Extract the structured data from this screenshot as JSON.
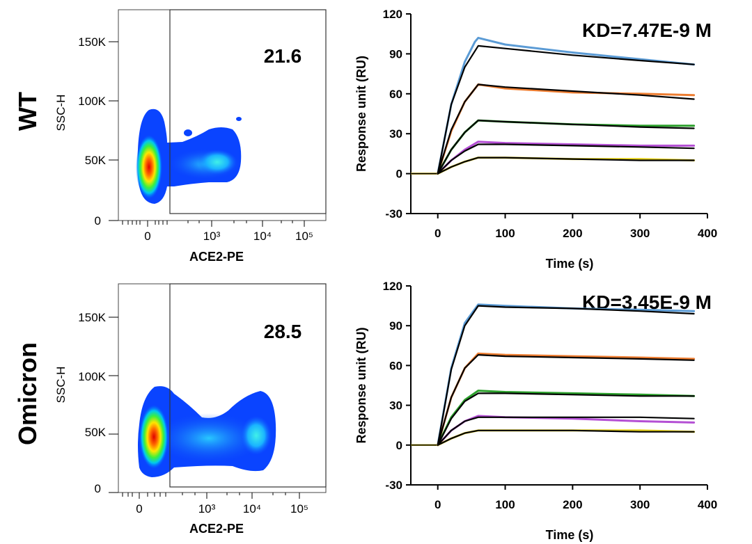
{
  "panels": [
    {
      "row_label": "WT",
      "flow": {
        "gate_value": "21.6",
        "xlabel": "ACE2-PE",
        "ylabel": "SSC-H",
        "yticks": [
          "0",
          "50K",
          "100K",
          "150K"
        ],
        "xticks": [
          "0",
          "10³",
          "10⁴",
          "10⁵"
        ]
      },
      "spr": {
        "kd": "KD=7.47E-9  M"
      }
    },
    {
      "row_label": "Omicron",
      "flow": {
        "gate_value": "28.5",
        "xlabel": "ACE2-PE",
        "ylabel": "SSC-H",
        "yticks": [
          "0",
          "50K",
          "100K",
          "150K"
        ],
        "xticks": [
          "0",
          "10³",
          "10⁴",
          "10⁵"
        ]
      },
      "spr": {
        "kd": "KD=3.45E-9  M"
      }
    }
  ],
  "chart_data": [
    {
      "type": "line",
      "chart": "WT SPR sensorgram",
      "annotation": "KD=7.47E-9  M",
      "xlabel": "Time (s)",
      "ylabel": "Response unit (RU)",
      "xlim": [
        -40,
        400
      ],
      "ylim": [
        -30,
        120
      ],
      "xticks": [
        0,
        100,
        200,
        300,
        400
      ],
      "yticks": [
        -30,
        0,
        30,
        60,
        90,
        120
      ],
      "series": [
        {
          "color": "#5b9bd5",
          "kind": "measured",
          "x": [
            0,
            20,
            40,
            55,
            60,
            100,
            200,
            300,
            380
          ],
          "y": [
            0,
            52,
            84,
            99,
            102,
            97,
            91,
            86,
            82
          ]
        },
        {
          "color": "#000000",
          "kind": "fit",
          "x": [
            0,
            20,
            40,
            60,
            100,
            200,
            300,
            380
          ],
          "y": [
            0,
            52,
            80,
            96,
            94,
            89,
            85,
            82
          ]
        },
        {
          "color": "#ed7d31",
          "kind": "measured",
          "x": [
            0,
            20,
            40,
            60,
            100,
            200,
            300,
            380
          ],
          "y": [
            0,
            32,
            54,
            67,
            64,
            61,
            60,
            59
          ]
        },
        {
          "color": "#000000",
          "kind": "fit",
          "x": [
            0,
            20,
            40,
            60,
            100,
            200,
            300,
            380
          ],
          "y": [
            0,
            33,
            54,
            67,
            65,
            62,
            59,
            56
          ]
        },
        {
          "color": "#2ca02c",
          "kind": "measured",
          "x": [
            0,
            20,
            40,
            60,
            100,
            200,
            300,
            380
          ],
          "y": [
            0,
            18,
            31,
            40,
            39,
            37,
            36,
            36
          ]
        },
        {
          "color": "#000000",
          "kind": "fit",
          "x": [
            0,
            20,
            40,
            60,
            100,
            200,
            300,
            380
          ],
          "y": [
            0,
            18,
            31,
            40,
            39,
            37,
            35,
            34
          ]
        },
        {
          "color": "#b44fd4",
          "kind": "measured",
          "x": [
            0,
            20,
            40,
            60,
            100,
            200,
            300,
            380
          ],
          "y": [
            0,
            10,
            18,
            24,
            23,
            22,
            21,
            21
          ]
        },
        {
          "color": "#000000",
          "kind": "fit",
          "x": [
            0,
            20,
            40,
            60,
            100,
            200,
            300,
            380
          ],
          "y": [
            0,
            10,
            17,
            22,
            22,
            21,
            20,
            19
          ]
        },
        {
          "color": "#e6d21e",
          "kind": "measured",
          "x": [
            0,
            20,
            40,
            60,
            100,
            200,
            300,
            380
          ],
          "y": [
            0,
            5,
            9,
            12,
            12,
            11,
            11,
            10
          ]
        },
        {
          "color": "#000000",
          "kind": "fit",
          "x": [
            0,
            20,
            40,
            60,
            100,
            200,
            300,
            380
          ],
          "y": [
            0,
            5,
            9,
            12,
            12,
            11,
            10,
            10
          ]
        }
      ]
    },
    {
      "type": "line",
      "chart": "Omicron SPR sensorgram",
      "annotation": "KD=3.45E-9  M",
      "xlabel": "Time (s)",
      "ylabel": "Response unit (RU)",
      "xlim": [
        -40,
        400
      ],
      "ylim": [
        -30,
        120
      ],
      "xticks": [
        0,
        100,
        200,
        300,
        400
      ],
      "yticks": [
        -30,
        0,
        30,
        60,
        90,
        120
      ],
      "series": [
        {
          "color": "#5b9bd5",
          "kind": "measured",
          "x": [
            0,
            20,
            40,
            60,
            100,
            200,
            300,
            380
          ],
          "y": [
            0,
            58,
            92,
            106,
            105,
            103,
            102,
            101
          ]
        },
        {
          "color": "#000000",
          "kind": "fit",
          "x": [
            0,
            20,
            40,
            60,
            100,
            200,
            300,
            380
          ],
          "y": [
            0,
            57,
            90,
            105,
            104,
            103,
            101,
            99
          ]
        },
        {
          "color": "#ed7d31",
          "kind": "measured",
          "x": [
            0,
            20,
            40,
            60,
            100,
            200,
            300,
            380
          ],
          "y": [
            0,
            36,
            58,
            69,
            68,
            67,
            66,
            65
          ]
        },
        {
          "color": "#000000",
          "kind": "fit",
          "x": [
            0,
            20,
            40,
            60,
            100,
            200,
            300,
            380
          ],
          "y": [
            0,
            36,
            58,
            68,
            67,
            66,
            65,
            64
          ]
        },
        {
          "color": "#2ca02c",
          "kind": "measured",
          "x": [
            0,
            20,
            40,
            60,
            100,
            200,
            300,
            380
          ],
          "y": [
            0,
            21,
            34,
            41,
            40,
            39,
            38,
            37
          ]
        },
        {
          "color": "#000000",
          "kind": "fit",
          "x": [
            0,
            20,
            40,
            60,
            100,
            200,
            300,
            380
          ],
          "y": [
            0,
            20,
            33,
            39,
            39,
            38,
            37,
            37
          ]
        },
        {
          "color": "#b44fd4",
          "kind": "measured",
          "x": [
            0,
            20,
            40,
            60,
            100,
            200,
            300,
            380
          ],
          "y": [
            0,
            11,
            18,
            22,
            21,
            20,
            18,
            17
          ]
        },
        {
          "color": "#000000",
          "kind": "fit",
          "x": [
            0,
            20,
            40,
            60,
            100,
            200,
            300,
            380
          ],
          "y": [
            0,
            11,
            18,
            21,
            21,
            21,
            21,
            20
          ]
        },
        {
          "color": "#e6d21e",
          "kind": "measured",
          "x": [
            0,
            20,
            40,
            60,
            100,
            200,
            300,
            380
          ],
          "y": [
            0,
            5,
            9,
            11,
            11,
            11,
            11,
            10
          ]
        },
        {
          "color": "#000000",
          "kind": "fit",
          "x": [
            0,
            20,
            40,
            60,
            100,
            200,
            300,
            380
          ],
          "y": [
            0,
            5,
            9,
            11,
            11,
            11,
            10,
            10
          ]
        }
      ]
    }
  ]
}
